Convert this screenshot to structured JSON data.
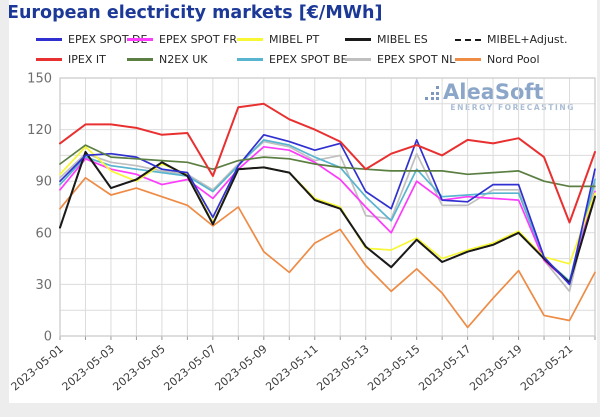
{
  "header": {
    "title": "European electricity markets [€/MWh]",
    "title_color": "#1c3997"
  },
  "watermark": {
    "brand": "AleaSoft",
    "tagline": "ENERGY FORECASTING"
  },
  "chart_data": {
    "type": "line",
    "title": "European electricity markets [€/MWh]",
    "xlabel": "",
    "ylabel": "",
    "ylim": [
      0,
      150
    ],
    "y_ticks": [
      0,
      30,
      60,
      90,
      120,
      150
    ],
    "y_grid_step": 15,
    "x_tick_step": 2,
    "grid": true,
    "legend_position": "top",
    "x": [
      "2023-05-01",
      "2023-05-02",
      "2023-05-03",
      "2023-05-04",
      "2023-05-05",
      "2023-05-06",
      "2023-05-07",
      "2023-05-08",
      "2023-05-09",
      "2023-05-10",
      "2023-05-11",
      "2023-05-12",
      "2023-05-13",
      "2023-05-14",
      "2023-05-15",
      "2023-05-16",
      "2023-05-17",
      "2023-05-18",
      "2023-05-19",
      "2023-05-20",
      "2023-05-21",
      "2023-05-22"
    ],
    "series": [
      {
        "name": "EPEX SPOT DE",
        "color": "#3030d0",
        "dash": null,
        "values": [
          90,
          105,
          106,
          104,
          97,
          95,
          69,
          99,
          117,
          113,
          108,
          112,
          84,
          74,
          114,
          79,
          78,
          88,
          88,
          46,
          30,
          97
        ]
      },
      {
        "name": "EPEX SPOT FR",
        "color": "#fb3dfb",
        "dash": null,
        "values": [
          85,
          103,
          97,
          94,
          88,
          91,
          80,
          97,
          110,
          108,
          101,
          91,
          75,
          60,
          90,
          79,
          81,
          80,
          79,
          44,
          31,
          84
        ]
      },
      {
        "name": "MIBEL PT",
        "color": "#f7f734",
        "dash": null,
        "values": [
          94,
          110,
          96,
          90,
          100,
          94,
          66,
          97,
          98,
          95,
          80,
          75,
          51,
          50,
          57,
          45,
          50,
          54,
          61,
          46,
          42,
          83
        ]
      },
      {
        "name": "MIBEL ES",
        "color": "#1a1a1a",
        "dash": null,
        "values": [
          63,
          107,
          86,
          91,
          101,
          93,
          65,
          97,
          98,
          95,
          79,
          74,
          52,
          40,
          56,
          43,
          49,
          53,
          60,
          45,
          31,
          81
        ]
      },
      {
        "name": "MIBEL+Adjust.",
        "color": "#1a1a1a",
        "dash": "7 6",
        "values": [
          63,
          107,
          86,
          91,
          101,
          93,
          65,
          97,
          98,
          95,
          79,
          74,
          52,
          40,
          56,
          43,
          49,
          53,
          60,
          45,
          31,
          81
        ]
      },
      {
        "name": "IPEX IT",
        "color": "#e93030",
        "dash": null,
        "values": [
          112,
          123,
          123,
          121,
          117,
          118,
          93,
          133,
          135,
          126,
          120,
          113,
          97,
          106,
          111,
          105,
          114,
          112,
          115,
          104,
          66,
          107
        ]
      },
      {
        "name": "N2EX UK",
        "color": "#5b7f43",
        "dash": null,
        "values": [
          100,
          111,
          104,
          103,
          102,
          101,
          97,
          102,
          104,
          103,
          100,
          98,
          97,
          96,
          96,
          96,
          94,
          95,
          96,
          90,
          87,
          87
        ]
      },
      {
        "name": "EPEX SPOT BE",
        "color": "#58b4cf",
        "dash": null,
        "values": [
          88,
          104,
          99,
          97,
          95,
          93,
          84,
          99,
          114,
          111,
          104,
          98,
          81,
          67,
          97,
          81,
          82,
          83,
          83,
          45,
          32,
          91
        ]
      },
      {
        "name": "EPEX SPOT NL",
        "color": "#bfbfbf",
        "dash": null,
        "values": [
          92,
          106,
          101,
          99,
          96,
          94,
          85,
          100,
          113,
          110,
          102,
          105,
          70,
          68,
          106,
          76,
          76,
          85,
          85,
          44,
          26,
          89
        ]
      },
      {
        "name": "Nord Pool",
        "color": "#ee8b45",
        "dash": null,
        "values": [
          74,
          92,
          82,
          86,
          81,
          76,
          64,
          75,
          49,
          37,
          54,
          62,
          41,
          26,
          39,
          25,
          5,
          22,
          38,
          12,
          9,
          37
        ]
      }
    ],
    "draw_order": [
      "EPEX SPOT NL",
      "Nord Pool",
      "EPEX SPOT BE",
      "EPEX SPOT FR",
      "MIBEL PT",
      "MIBEL ES",
      "MIBEL+Adjust.",
      "EPEX SPOT DE",
      "N2EX UK",
      "IPEX IT"
    ]
  },
  "style": {
    "grid_color": "#dcdcdc",
    "border_color": "#c9c9c9",
    "tick_color": "#9a9a9a"
  }
}
